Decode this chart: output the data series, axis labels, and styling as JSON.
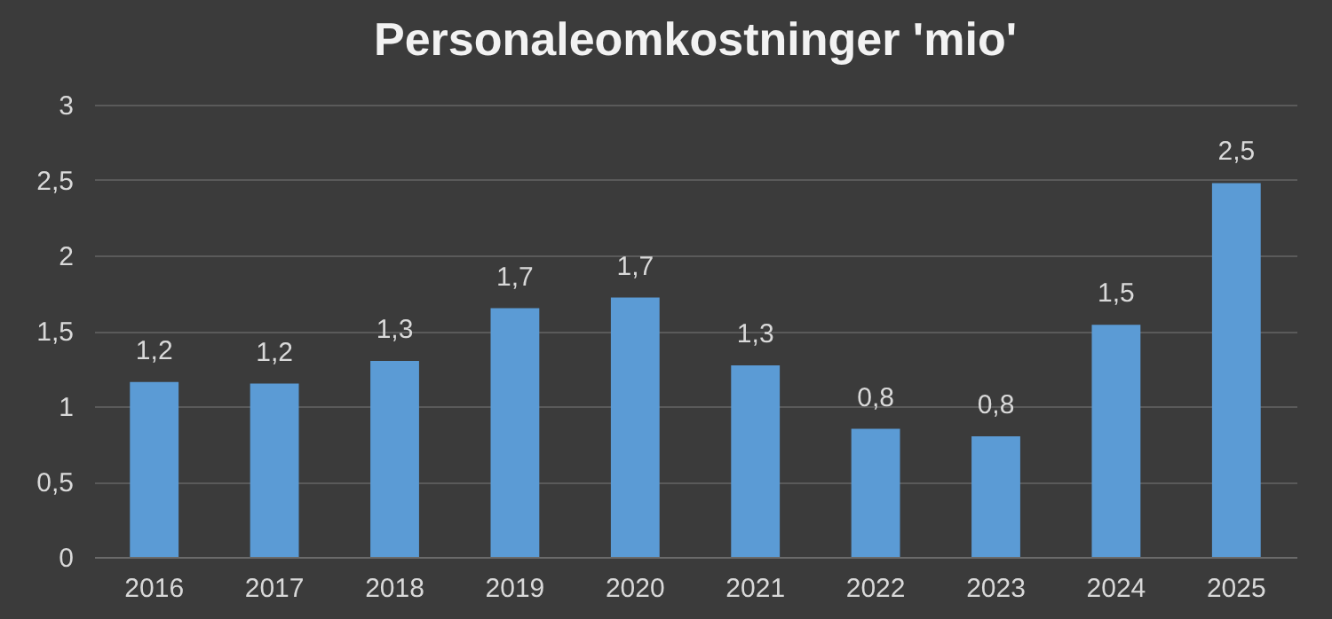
{
  "chart_data": {
    "type": "bar",
    "title": "Personaleomkostninger 'mio'",
    "categories": [
      "2016",
      "2017",
      "2018",
      "2019",
      "2020",
      "2021",
      "2022",
      "2023",
      "2024",
      "2025"
    ],
    "values": [
      1.16,
      1.15,
      1.3,
      1.65,
      1.72,
      1.27,
      0.85,
      0.8,
      1.54,
      2.48
    ],
    "value_labels": [
      "1,2",
      "1,2",
      "1,3",
      "1,7",
      "1,7",
      "1,3",
      "0,8",
      "0,8",
      "1,5",
      "2,5"
    ],
    "color": "#5b9bd5",
    "ylim": [
      0,
      3
    ],
    "yticks": [
      0,
      {
        "value": 0.5,
        "label": "0,5"
      },
      1,
      {
        "value": 1.5,
        "label": "1,5"
      },
      2,
      {
        "value": 2.5,
        "label": "2,5"
      },
      3
    ],
    "grid": true
  }
}
